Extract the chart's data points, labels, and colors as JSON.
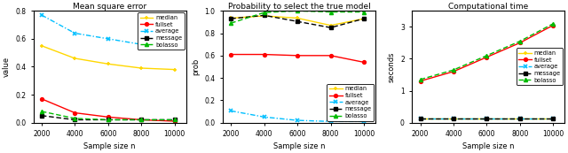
{
  "x": [
    2000,
    4000,
    6000,
    8000,
    10000
  ],
  "panel1": {
    "title": "Mean square error",
    "ylabel": "value",
    "xlabel": "Sample size n",
    "ylim": [
      0.0,
      0.8
    ],
    "yticks": [
      0.0,
      0.2,
      0.4,
      0.6,
      0.8
    ],
    "median": [
      0.55,
      0.46,
      0.42,
      0.39,
      0.38
    ],
    "fullset": [
      0.17,
      0.07,
      0.04,
      0.02,
      0.01
    ],
    "average": [
      0.77,
      0.64,
      0.6,
      0.56,
      0.54
    ],
    "message": [
      0.05,
      0.02,
      0.02,
      0.02,
      0.02
    ],
    "bolasso": [
      0.08,
      0.03,
      0.02,
      0.02,
      0.02
    ],
    "legend_loc": "upper right"
  },
  "panel2": {
    "title": "Probability to select the true model",
    "ylabel": "prob",
    "xlabel": "Sample size n",
    "ylim": [
      0.0,
      1.0
    ],
    "yticks": [
      0.0,
      0.2,
      0.4,
      0.6,
      0.8,
      1.0
    ],
    "median": [
      0.935,
      0.955,
      0.935,
      0.87,
      0.93
    ],
    "fullset": [
      0.61,
      0.61,
      0.6,
      0.6,
      0.54
    ],
    "average": [
      0.105,
      0.05,
      0.02,
      0.01,
      0.01
    ],
    "message": [
      0.93,
      0.96,
      0.905,
      0.85,
      0.93
    ],
    "bolasso": [
      0.89,
      0.985,
      1.0,
      0.99,
      0.99
    ],
    "legend_loc": "lower right"
  },
  "panel3": {
    "title": "Computational time",
    "ylabel": "seconds",
    "xlabel": "Sample size n",
    "ylim": [
      0.0,
      3.5
    ],
    "yticks": [
      0.0,
      1.0,
      2.0,
      3.0
    ],
    "median": [
      0.12,
      0.12,
      0.12,
      0.12,
      0.12
    ],
    "fullset": [
      1.3,
      1.6,
      2.05,
      2.5,
      3.05
    ],
    "average": [
      0.12,
      0.12,
      0.12,
      0.12,
      0.12
    ],
    "message": [
      0.12,
      0.12,
      0.12,
      0.12,
      0.12
    ],
    "bolasso": [
      1.35,
      1.65,
      2.1,
      2.55,
      3.1
    ],
    "legend_loc": "center right"
  },
  "colors": {
    "median": "#FFD700",
    "fullset": "#FF0000",
    "average": "#00BFFF",
    "message": "#000000",
    "bolasso": "#00BB00"
  },
  "series": [
    "median",
    "fullset",
    "average",
    "message",
    "bolasso"
  ],
  "bg_color": "#FFFFFF",
  "fig_bg": "#FFFFFF"
}
